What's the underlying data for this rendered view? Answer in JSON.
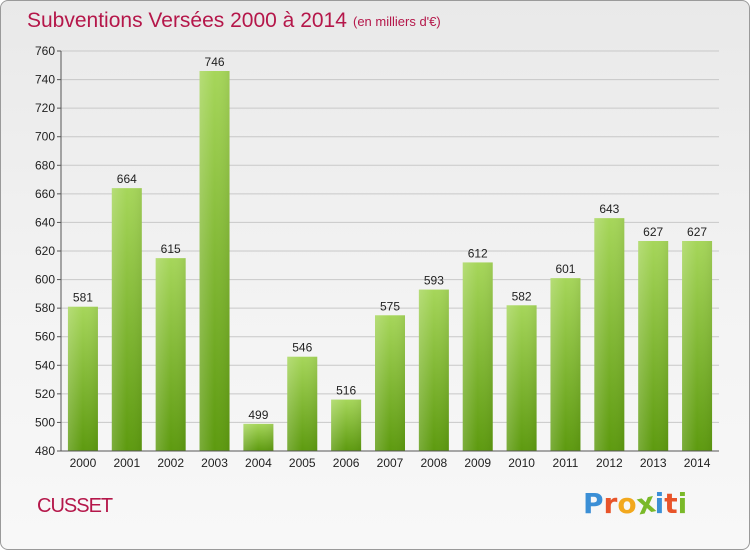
{
  "header": {
    "title": "Subventions Versées 2000 à 2014",
    "subtitle": "(en milliers d'€)"
  },
  "footer": {
    "city": "CUSSET",
    "brand_letters": [
      "P",
      "r",
      "o",
      "x",
      "i",
      "t",
      "i"
    ],
    "brand_colors": [
      "#3b8fd6",
      "#e8542a",
      "#f2a81d",
      "#7ab929",
      "#3b8fd6",
      "#e8542a",
      "#7ab929"
    ]
  },
  "colors": {
    "accent": "#b5174a",
    "bar_light": "#a6d65a",
    "bar_dark": "#5d9a0f",
    "grid": "#c8c8c8"
  },
  "chart_data": {
    "type": "bar",
    "title": "Subventions Versées 2000 à 2014",
    "subtitle": "(en milliers d'€)",
    "categories": [
      "2000",
      "2001",
      "2002",
      "2003",
      "2004",
      "2005",
      "2006",
      "2007",
      "2008",
      "2009",
      "2010",
      "2011",
      "2012",
      "2013",
      "2014"
    ],
    "values": [
      581,
      664,
      615,
      746,
      499,
      546,
      516,
      575,
      593,
      612,
      582,
      601,
      643,
      627,
      627
    ],
    "ylim": [
      480,
      760
    ],
    "yticks": [
      480,
      500,
      520,
      540,
      560,
      580,
      600,
      620,
      640,
      660,
      680,
      700,
      720,
      740,
      760
    ],
    "grid": true
  }
}
